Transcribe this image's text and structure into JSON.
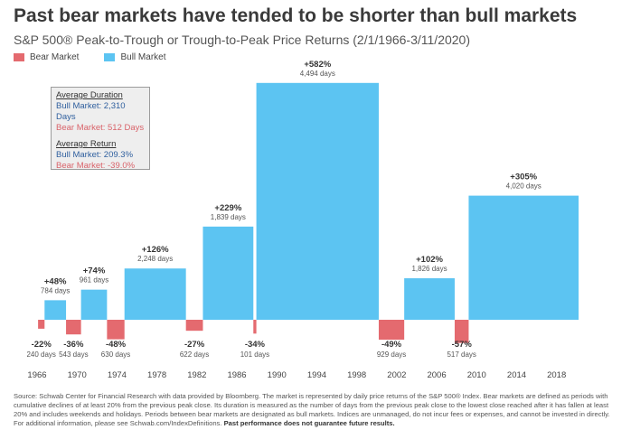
{
  "title": "Past bear markets have tended to be shorter than bull markets",
  "subtitle": "S&P 500® Peak-to-Trough or Trough-to-Peak Price Returns (2/1/1966-3/11/2020)",
  "legend": {
    "bear": "Bear Market",
    "bull": "Bull Market"
  },
  "colors": {
    "bull": "#5cc4f2",
    "bear": "#e46a6f"
  },
  "infobox": {
    "duration_heading": "Average Duration",
    "bull_duration": "Bull Market:  2,310 Days",
    "bear_duration": "Bear Market:  512 Days",
    "return_heading": "Average Return",
    "bull_return": "Bull Market:  209.3%",
    "bear_return": "Bear Market:  -39.0%"
  },
  "source": {
    "text": "Source: Schwab Center for Financial Research with data provided by Bloomberg. The market is represented by daily price returns of the S&P 500® Index. Bear markets are defined as periods with cumulative declines of at least 20% from the previous peak close. Its duration is measured as the number of days from the previous peak close to the lowest close reached after it has fallen at least 20% and includes weekends and holidays. Periods between bear markets are designated as bull markets. Indices are unmanaged, do not incur fees or expenses, and cannot be invested in directly. For additional information, please see Schwab.com/IndexDefinitions.",
    "bold": "Past performance does not guarantee future results."
  },
  "chart_data": {
    "type": "bar",
    "x_ticks": [
      1966,
      1970,
      1974,
      1978,
      1982,
      1986,
      1990,
      1994,
      1998,
      2002,
      2006,
      2010,
      2014,
      2018
    ],
    "xlim": [
      1966,
      2020.2
    ],
    "ylim": [
      -60,
      600
    ],
    "bear_markets": [
      {
        "start": 1966.1,
        "end": 1966.75,
        "return": -22,
        "days": 240,
        "label": "-22%",
        "days_label": "240 days"
      },
      {
        "start": 1968.9,
        "end": 1970.4,
        "return": -36,
        "days": 543,
        "label": "-36%",
        "days_label": "543 days"
      },
      {
        "start": 1973.0,
        "end": 1974.75,
        "return": -48,
        "days": 630,
        "label": "-48%",
        "days_label": "630 days"
      },
      {
        "start": 1980.9,
        "end": 1982.6,
        "return": -27,
        "days": 622,
        "label": "-27%",
        "days_label": "622 days"
      },
      {
        "start": 1987.65,
        "end": 1987.95,
        "return": -34,
        "days": 101,
        "label": "-34%",
        "days_label": "101 days"
      },
      {
        "start": 2000.2,
        "end": 2002.75,
        "return": -49,
        "days": 929,
        "label": "-49%",
        "days_label": "929 days"
      },
      {
        "start": 2007.8,
        "end": 2009.2,
        "return": -57,
        "days": 517,
        "label": "-57%",
        "days_label": "517 days"
      }
    ],
    "bull_markets": [
      {
        "start": 1966.75,
        "end": 1968.9,
        "return": 48,
        "days": 784,
        "label": "+48%",
        "days_label": "784 days"
      },
      {
        "start": 1970.4,
        "end": 1973.0,
        "return": 74,
        "days": 961,
        "label": "+74%",
        "days_label": "961 days"
      },
      {
        "start": 1974.75,
        "end": 1980.9,
        "return": 126,
        "days": 2248,
        "label": "+126%",
        "days_label": "2,248 days"
      },
      {
        "start": 1982.6,
        "end": 1987.65,
        "return": 229,
        "days": 1839,
        "label": "+229%",
        "days_label": "1,839 days"
      },
      {
        "start": 1987.95,
        "end": 2000.2,
        "return": 582,
        "days": 4494,
        "label": "+582%",
        "days_label": "4,494 days"
      },
      {
        "start": 2002.75,
        "end": 2007.8,
        "return": 102,
        "days": 1826,
        "label": "+102%",
        "days_label": "1,826 days"
      },
      {
        "start": 2009.2,
        "end": 2020.2,
        "return": 305,
        "days": 4020,
        "label": "+305%",
        "days_label": "4,020 days"
      }
    ]
  }
}
